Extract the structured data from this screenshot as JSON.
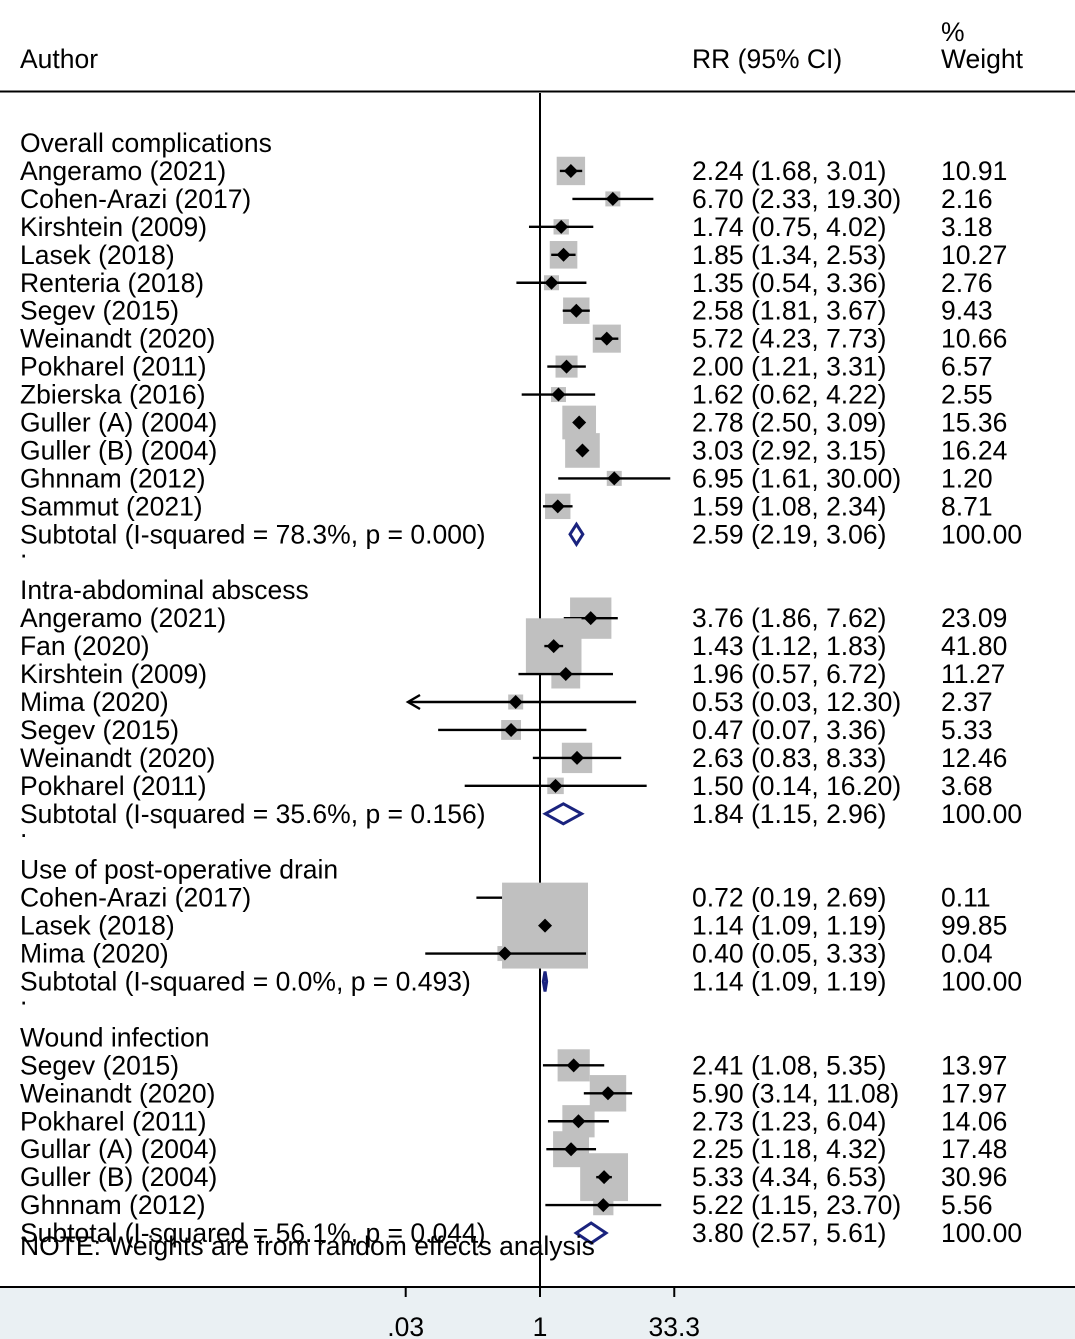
{
  "chart_data": {
    "type": "forest",
    "headers": {
      "author": "Author",
      "rr": "RR (95% CI)",
      "weight_line1": "%",
      "weight_line2": "Weight"
    },
    "axis": {
      "scale": "log",
      "null_value": 1,
      "ticks": [
        0.03,
        1,
        33.3
      ],
      "tick_labels": [
        ".03",
        "1",
        "33.3"
      ]
    },
    "colors": {
      "square": "#c0c0c0",
      "diamond": "#1a237e",
      "line": "#000000",
      "band": "#eaf0f3"
    },
    "groups": [
      {
        "title": "Overall complications",
        "studies": [
          {
            "author": "Angeramo (2021)",
            "rr": 2.24,
            "lo": 1.68,
            "hi": 3.01,
            "ci_text": "2.24 (1.68, 3.01)",
            "weight": "10.91"
          },
          {
            "author": "Cohen-Arazi (2017)",
            "rr": 6.7,
            "lo": 2.33,
            "hi": 19.3,
            "ci_text": "6.70 (2.33, 19.30)",
            "weight": "2.16"
          },
          {
            "author": "Kirshtein (2009)",
            "rr": 1.74,
            "lo": 0.75,
            "hi": 4.02,
            "ci_text": "1.74 (0.75, 4.02)",
            "weight": "3.18"
          },
          {
            "author": "Lasek (2018)",
            "rr": 1.85,
            "lo": 1.34,
            "hi": 2.53,
            "ci_text": "1.85 (1.34, 2.53)",
            "weight": "10.27"
          },
          {
            "author": "Renteria (2018)",
            "rr": 1.35,
            "lo": 0.54,
            "hi": 3.36,
            "ci_text": "1.35 (0.54, 3.36)",
            "weight": "2.76"
          },
          {
            "author": "Segev (2015)",
            "rr": 2.58,
            "lo": 1.81,
            "hi": 3.67,
            "ci_text": "2.58 (1.81, 3.67)",
            "weight": "9.43"
          },
          {
            "author": "Weinandt (2020)",
            "rr": 5.72,
            "lo": 4.23,
            "hi": 7.73,
            "ci_text": "5.72 (4.23, 7.73)",
            "weight": "10.66"
          },
          {
            "author": "Pokharel (2011)",
            "rr": 2.0,
            "lo": 1.21,
            "hi": 3.31,
            "ci_text": "2.00 (1.21, 3.31)",
            "weight": "6.57"
          },
          {
            "author": "Zbierska (2016)",
            "rr": 1.62,
            "lo": 0.62,
            "hi": 4.22,
            "ci_text": "1.62 (0.62, 4.22)",
            "weight": "2.55"
          },
          {
            "author": "Guller (A) (2004)",
            "rr": 2.78,
            "lo": 2.5,
            "hi": 3.09,
            "ci_text": "2.78 (2.50, 3.09)",
            "weight": "15.36"
          },
          {
            "author": "Guller (B) (2004)",
            "rr": 3.03,
            "lo": 2.92,
            "hi": 3.15,
            "ci_text": "3.03 (2.92, 3.15)",
            "weight": "16.24"
          },
          {
            "author": "Ghnnam (2012)",
            "rr": 6.95,
            "lo": 1.61,
            "hi": 30.0,
            "ci_text": "6.95 (1.61, 30.00)",
            "weight": "1.20"
          },
          {
            "author": "Sammut (2021)",
            "rr": 1.59,
            "lo": 1.08,
            "hi": 2.34,
            "ci_text": "1.59 (1.08, 2.34)",
            "weight": "8.71"
          }
        ],
        "subtotal": {
          "label": "Subtotal  (I-squared = 78.3%, p = 0.000)",
          "rr": 2.59,
          "lo": 2.19,
          "hi": 3.06,
          "ci_text": "2.59 (2.19, 3.06)",
          "weight": "100.00"
        }
      },
      {
        "title": "Intra-abdominal abscess",
        "studies": [
          {
            "author": "Angeramo (2021)",
            "rr": 3.76,
            "lo": 1.86,
            "hi": 7.62,
            "ci_text": "3.76 (1.86, 7.62)",
            "weight": "23.09"
          },
          {
            "author": "Fan (2020)",
            "rr": 1.43,
            "lo": 1.12,
            "hi": 1.83,
            "ci_text": "1.43 (1.12, 1.83)",
            "weight": "41.80"
          },
          {
            "author": "Kirshtein (2009)",
            "rr": 1.96,
            "lo": 0.57,
            "hi": 6.72,
            "ci_text": "1.96 (0.57, 6.72)",
            "weight": "11.27"
          },
          {
            "author": "Mima (2020)",
            "rr": 0.53,
            "lo": 0.03,
            "hi": 12.3,
            "ci_text": "0.53 (0.03, 12.30)",
            "weight": "2.37",
            "arrow_left": true
          },
          {
            "author": "Segev (2015)",
            "rr": 0.47,
            "lo": 0.07,
            "hi": 3.36,
            "ci_text": "0.47 (0.07, 3.36)",
            "weight": "5.33"
          },
          {
            "author": "Weinandt (2020)",
            "rr": 2.63,
            "lo": 0.83,
            "hi": 8.33,
            "ci_text": "2.63 (0.83, 8.33)",
            "weight": "12.46"
          },
          {
            "author": "Pokharel (2011)",
            "rr": 1.5,
            "lo": 0.14,
            "hi": 16.2,
            "ci_text": "1.50 (0.14, 16.20)",
            "weight": "3.68"
          }
        ],
        "subtotal": {
          "label": "Subtotal  (I-squared = 35.6%, p = 0.156)",
          "rr": 1.84,
          "lo": 1.15,
          "hi": 2.96,
          "ci_text": "1.84 (1.15, 2.96)",
          "weight": "100.00"
        }
      },
      {
        "title": "Use of post-operative drain",
        "studies": [
          {
            "author": "Cohen-Arazi (2017)",
            "rr": 0.72,
            "lo": 0.19,
            "hi": 2.69,
            "ci_text": "0.72 (0.19, 2.69)",
            "weight": "0.11"
          },
          {
            "author": "Lasek (2018)",
            "rr": 1.14,
            "lo": 1.09,
            "hi": 1.19,
            "ci_text": "1.14 (1.09, 1.19)",
            "weight": "99.85"
          },
          {
            "author": "Mima (2020)",
            "rr": 0.4,
            "lo": 0.05,
            "hi": 3.33,
            "ci_text": "0.40 (0.05, 3.33)",
            "weight": "0.04"
          }
        ],
        "subtotal": {
          "label": "Subtotal  (I-squared = 0.0%, p = 0.493)",
          "rr": 1.14,
          "lo": 1.09,
          "hi": 1.19,
          "ci_text": "1.14 (1.09, 1.19)",
          "weight": "100.00"
        }
      },
      {
        "title": "Wound infection",
        "studies": [
          {
            "author": "Segev (2015)",
            "rr": 2.41,
            "lo": 1.08,
            "hi": 5.35,
            "ci_text": "2.41 (1.08, 5.35)",
            "weight": "13.97"
          },
          {
            "author": "Weinandt (2020)",
            "rr": 5.9,
            "lo": 3.14,
            "hi": 11.08,
            "ci_text": "5.90 (3.14, 11.08)",
            "weight": "17.97"
          },
          {
            "author": "Pokharel (2011)",
            "rr": 2.73,
            "lo": 1.23,
            "hi": 6.04,
            "ci_text": "2.73 (1.23, 6.04)",
            "weight": "14.06"
          },
          {
            "author": "Gullar (A) (2004)",
            "rr": 2.25,
            "lo": 1.18,
            "hi": 4.32,
            "ci_text": "2.25 (1.18, 4.32)",
            "weight": "17.48"
          },
          {
            "author": "Guller (B) (2004)",
            "rr": 5.33,
            "lo": 4.34,
            "hi": 6.53,
            "ci_text": "5.33 (4.34, 6.53)",
            "weight": "30.96"
          },
          {
            "author": "Ghnnam (2012)",
            "rr": 5.22,
            "lo": 1.15,
            "hi": 23.7,
            "ci_text": "5.22 (1.15, 23.70)",
            "weight": "5.56"
          }
        ],
        "subtotal": {
          "label": "Subtotal  (I-squared = 56.1%, p = 0.044)",
          "rr": 3.8,
          "lo": 2.57,
          "hi": 5.61,
          "ci_text": "3.80 (2.57, 5.61)",
          "weight": "100.00"
        }
      }
    ],
    "separator": ".",
    "note": "NOTE: Weights are from random effects analysis"
  }
}
